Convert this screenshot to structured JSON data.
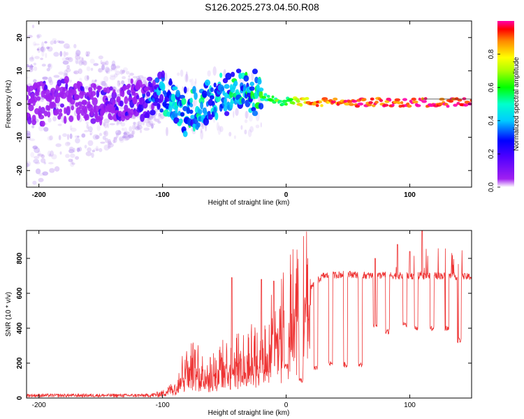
{
  "title": "S126.2025.273.04.50.R08",
  "chart_data": [
    {
      "type": "heatmap",
      "title": "S126.2025.273.04.50.R08",
      "xlabel": "Height of straight line (km)",
      "ylabel": "Frequency (Hz)",
      "xlim": [
        -210,
        150
      ],
      "ylim": [
        -25,
        25
      ],
      "xticks": [
        -200,
        -100,
        0,
        100
      ],
      "yticks": [
        -20,
        -10,
        0,
        10,
        20
      ],
      "colorbar": {
        "label": "Normalized spectral amplitude",
        "range": [
          0,
          1
        ],
        "ticks": [
          "0.0",
          "0.2",
          "0.4",
          "0.6",
          "0.8"
        ]
      },
      "ridge": {
        "x": [
          -210,
          -180,
          -150,
          -120,
          -100,
          -90,
          -80,
          -70,
          -60,
          -50,
          -40,
          -30,
          -20,
          -10,
          0,
          20,
          50,
          100,
          150
        ],
        "freq": [
          0,
          1,
          0,
          1,
          3,
          1,
          -3,
          0,
          1,
          3,
          4,
          5,
          2,
          1,
          1,
          0.5,
          0.5,
          0.5,
          0.5
        ],
        "amplitude": [
          0.1,
          0.1,
          0.12,
          0.15,
          0.4,
          0.5,
          0.45,
          0.5,
          0.4,
          0.45,
          0.5,
          0.5,
          0.55,
          0.6,
          0.6,
          0.85,
          0.9,
          0.95,
          1.0
        ]
      }
    },
    {
      "type": "line",
      "xlabel": "Height of straight line (km)",
      "ylabel": "SNR (10 * v/v)",
      "xlim": [
        -210,
        150
      ],
      "ylim": [
        0,
        960
      ],
      "xticks": [
        -200,
        -100,
        0,
        100
      ],
      "yticks": [
        0,
        200,
        400,
        600,
        800
      ],
      "color": "#ee3333",
      "envelope": {
        "x": [
          -210,
          -110,
          -100,
          -90,
          -85,
          -80,
          -70,
          -60,
          -50,
          -40,
          -30,
          -25,
          -20,
          -10,
          0,
          5,
          10,
          15,
          20,
          25,
          30,
          40,
          50,
          60,
          70,
          80,
          90,
          100,
          110,
          120,
          130,
          140,
          150
        ],
        "y": [
          15,
          15,
          25,
          60,
          150,
          200,
          170,
          160,
          200,
          210,
          260,
          240,
          200,
          400,
          420,
          520,
          560,
          590,
          640,
          670,
          700,
          705,
          710,
          705,
          700,
          705,
          700,
          700,
          700,
          700,
          700,
          695,
          695
        ]
      },
      "dips": [
        {
          "x": 0,
          "y": 180
        },
        {
          "x": 12,
          "y": 100
        },
        {
          "x": 24,
          "y": 170
        },
        {
          "x": 36,
          "y": 200
        },
        {
          "x": 48,
          "y": 190
        },
        {
          "x": 60,
          "y": 190
        },
        {
          "x": 72,
          "y": 420
        },
        {
          "x": 82,
          "y": 380
        },
        {
          "x": 96,
          "y": 420
        },
        {
          "x": 105,
          "y": 400
        },
        {
          "x": 118,
          "y": 400
        },
        {
          "x": 130,
          "y": 400
        },
        {
          "x": 140,
          "y": 330
        }
      ],
      "spikes": [
        {
          "x": -44,
          "y": 690
        },
        {
          "x": -20,
          "y": 680
        },
        {
          "x": -10,
          "y": 670
        },
        {
          "x": 72,
          "y": 800
        },
        {
          "x": 90,
          "y": 880
        },
        {
          "x": 100,
          "y": 840
        },
        {
          "x": 110,
          "y": 960
        }
      ]
    }
  ]
}
